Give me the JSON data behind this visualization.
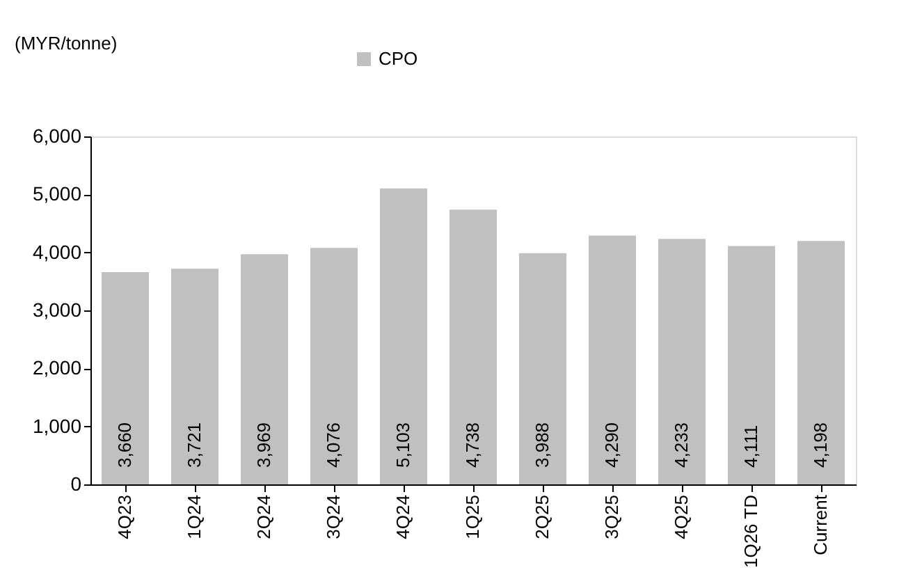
{
  "chart_data": {
    "type": "bar",
    "ylabel": "(MYR/tonne)",
    "categories": [
      "4Q23",
      "1Q24",
      "2Q24",
      "3Q24",
      "4Q24",
      "1Q25",
      "2Q25",
      "3Q25",
      "4Q25",
      "1Q26 TD",
      "Current"
    ],
    "series": [
      {
        "name": "CPO",
        "color": "#c0c0c0",
        "values": [
          3660,
          3721,
          3969,
          4076,
          5103,
          4738,
          3988,
          4290,
          4233,
          4111,
          4198
        ],
        "value_labels": [
          "3,660",
          "3,721",
          "3,969",
          "4,076",
          "5,103",
          "4,738",
          "3,988",
          "4,290",
          "4,233",
          "4,111",
          "4,198"
        ]
      }
    ],
    "ylim": [
      0,
      6000
    ],
    "yticks": [
      0,
      {
        "value": 1000,
        "label": "1,000"
      },
      {
        "value": 2000,
        "label": "2,000"
      },
      {
        "value": 3000,
        "label": "3,000"
      },
      {
        "value": 4000,
        "label": "4,000"
      },
      {
        "value": 5000,
        "label": "5,000"
      },
      {
        "value": 6000,
        "label": "6,000"
      }
    ],
    "grid": false,
    "legend": "top"
  }
}
